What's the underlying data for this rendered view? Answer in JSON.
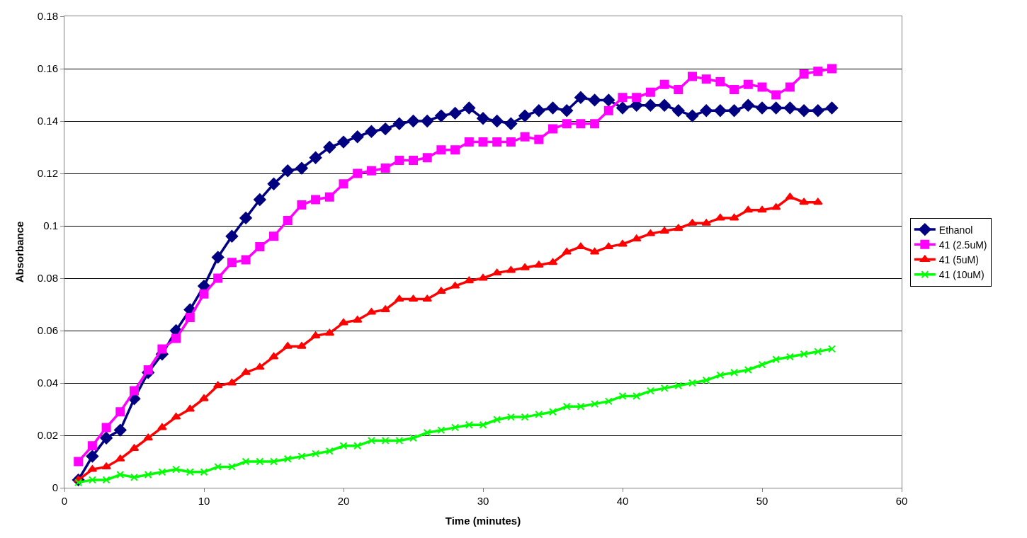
{
  "chart_data": {
    "type": "line",
    "xlabel": "Time (minutes)",
    "ylabel": "Absorbance",
    "x": [
      1,
      2,
      3,
      4,
      5,
      6,
      7,
      8,
      9,
      10,
      11,
      12,
      13,
      14,
      15,
      16,
      17,
      18,
      19,
      20,
      21,
      22,
      23,
      24,
      25,
      26,
      27,
      28,
      29,
      30,
      31,
      32,
      33,
      34,
      35,
      36,
      37,
      38,
      39,
      40,
      41,
      42,
      43,
      44,
      45,
      46,
      47,
      48,
      49,
      50,
      51,
      52,
      53,
      54,
      55
    ],
    "xlim": [
      0,
      60
    ],
    "xticks": [
      0,
      10,
      20,
      30,
      40,
      50,
      60
    ],
    "ylim": [
      0,
      0.18
    ],
    "yticks": [
      0,
      0.02,
      0.04,
      0.06,
      0.08,
      0.1,
      0.12,
      0.14,
      0.16,
      0.18
    ],
    "grid": "y",
    "legend": "right",
    "line_style": "solid",
    "series": [
      {
        "name": "Ethanol",
        "color": "#000080",
        "marker": "diamond",
        "values": [
          0.003,
          0.012,
          0.019,
          0.022,
          0.034,
          0.044,
          0.051,
          0.06,
          0.068,
          0.077,
          0.088,
          0.096,
          0.103,
          0.11,
          0.116,
          0.121,
          0.122,
          0.126,
          0.13,
          0.132,
          0.134,
          0.136,
          0.137,
          0.139,
          0.14,
          0.14,
          0.142,
          0.143,
          0.145,
          0.141,
          0.14,
          0.139,
          0.142,
          0.144,
          0.145,
          0.144,
          0.149,
          0.148,
          0.148,
          0.145,
          0.146,
          0.146,
          0.146,
          0.144,
          0.142,
          0.144,
          0.144,
          0.144,
          0.146,
          0.145,
          0.145,
          0.145,
          0.144,
          0.144,
          0.145
        ]
      },
      {
        "name": "41 (2.5uM)",
        "color": "#ff00ff",
        "marker": "square",
        "values": [
          0.01,
          0.016,
          0.023,
          0.029,
          0.037,
          0.045,
          0.053,
          0.057,
          0.065,
          0.074,
          0.08,
          0.086,
          0.087,
          0.092,
          0.096,
          0.102,
          0.108,
          0.11,
          0.111,
          0.116,
          0.12,
          0.121,
          0.122,
          0.125,
          0.125,
          0.126,
          0.129,
          0.129,
          0.132,
          0.132,
          0.132,
          0.132,
          0.134,
          0.133,
          0.137,
          0.139,
          0.139,
          0.139,
          0.144,
          0.149,
          0.149,
          0.151,
          0.154,
          0.152,
          0.157,
          0.156,
          0.155,
          0.152,
          0.154,
          0.153,
          0.15,
          0.153,
          0.158,
          0.159,
          0.16
        ]
      },
      {
        "name": "41 (5uM)",
        "color": "#ff0000",
        "marker": "triangle",
        "x": [
          1,
          2,
          3,
          4,
          5,
          6,
          7,
          8,
          9,
          10,
          11,
          12,
          13,
          14,
          15,
          16,
          17,
          18,
          19,
          20,
          21,
          22,
          23,
          24,
          25,
          26,
          27,
          28,
          29,
          30,
          31,
          32,
          33,
          34,
          35,
          36,
          37,
          38,
          39,
          40,
          41,
          42,
          43,
          44,
          45,
          46,
          47,
          48,
          49,
          50,
          51,
          52,
          53,
          54
        ],
        "values": [
          0.003,
          0.007,
          0.008,
          0.011,
          0.015,
          0.019,
          0.023,
          0.027,
          0.03,
          0.034,
          0.039,
          0.04,
          0.044,
          0.046,
          0.05,
          0.054,
          0.054,
          0.058,
          0.059,
          0.063,
          0.064,
          0.067,
          0.068,
          0.072,
          0.072,
          0.072,
          0.075,
          0.077,
          0.079,
          0.08,
          0.082,
          0.083,
          0.084,
          0.085,
          0.086,
          0.09,
          0.092,
          0.09,
          0.092,
          0.093,
          0.095,
          0.097,
          0.098,
          0.099,
          0.101,
          0.101,
          0.103,
          0.103,
          0.106,
          0.106,
          0.107,
          0.111,
          0.109,
          0.109
        ]
      },
      {
        "name": "41 (10uM)",
        "color": "#00ff00",
        "marker": "cross",
        "values": [
          0.002,
          0.003,
          0.003,
          0.005,
          0.004,
          0.005,
          0.006,
          0.007,
          0.006,
          0.006,
          0.008,
          0.008,
          0.01,
          0.01,
          0.01,
          0.011,
          0.012,
          0.013,
          0.014,
          0.016,
          0.016,
          0.018,
          0.018,
          0.018,
          0.019,
          0.021,
          0.022,
          0.023,
          0.024,
          0.024,
          0.026,
          0.027,
          0.027,
          0.028,
          0.029,
          0.031,
          0.031,
          0.032,
          0.033,
          0.035,
          0.035,
          0.037,
          0.038,
          0.039,
          0.04,
          0.041,
          0.043,
          0.044,
          0.045,
          0.047,
          0.049,
          0.05,
          0.051,
          0.052,
          0.053
        ]
      }
    ]
  }
}
